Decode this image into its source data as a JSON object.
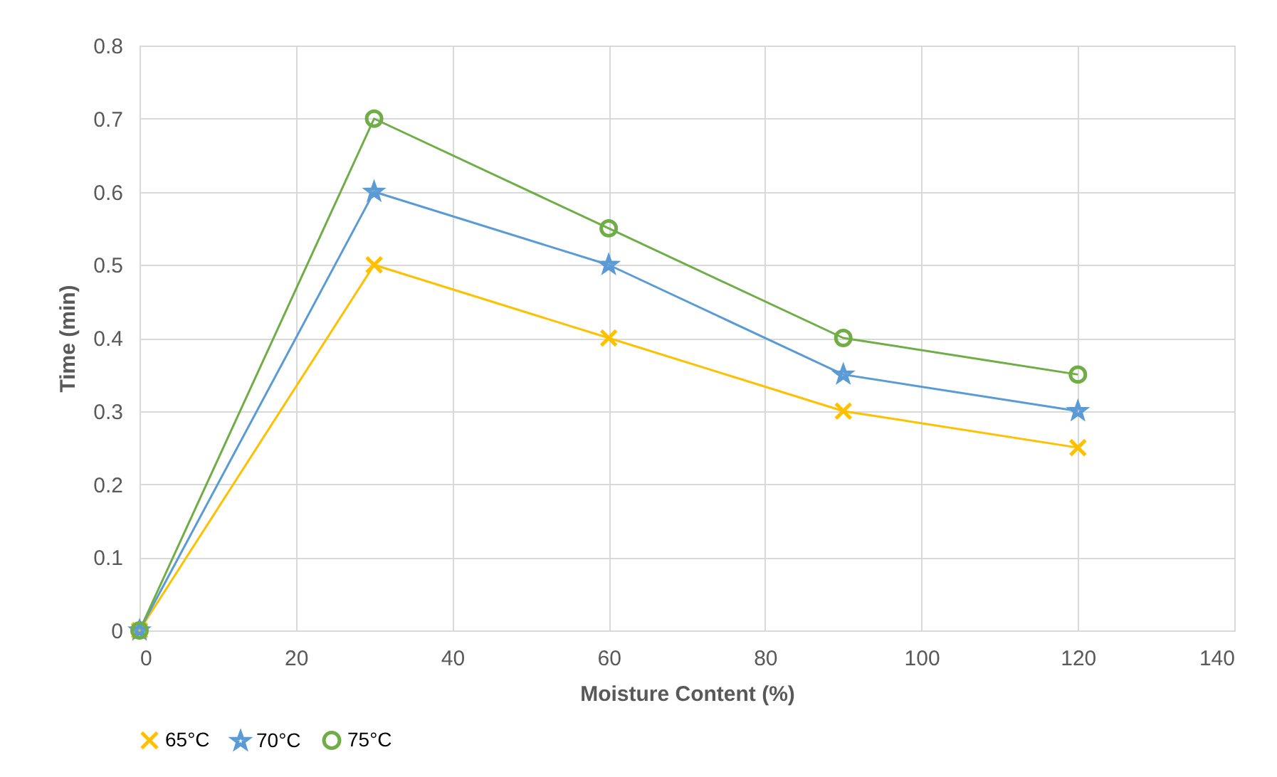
{
  "chart_data": {
    "type": "line",
    "xlabel": "Moisture Content (%)",
    "ylabel": "Time (min)",
    "x": [
      0,
      30,
      60,
      90,
      120
    ],
    "series": [
      {
        "name": "65°C",
        "color": "#ffc000",
        "marker": "cross",
        "values": [
          0,
          0.5,
          0.4,
          0.3,
          0.25
        ]
      },
      {
        "name": "70°C",
        "color": "#5b9bd5",
        "marker": "star",
        "values": [
          0,
          0.6,
          0.5,
          0.35,
          0.3
        ]
      },
      {
        "name": "75°C",
        "color": "#70ad47",
        "marker": "circle",
        "values": [
          0,
          0.7,
          0.55,
          0.4,
          0.35
        ]
      }
    ],
    "xlim": [
      0,
      140
    ],
    "xticks": [
      0,
      20,
      40,
      60,
      80,
      100,
      120,
      140
    ],
    "ylim": [
      0,
      0.8
    ],
    "yticks": [
      0,
      0.1,
      0.2,
      0.3,
      0.4,
      0.5,
      0.6,
      0.7,
      0.8
    ],
    "grid": true,
    "legend": "bottom"
  }
}
